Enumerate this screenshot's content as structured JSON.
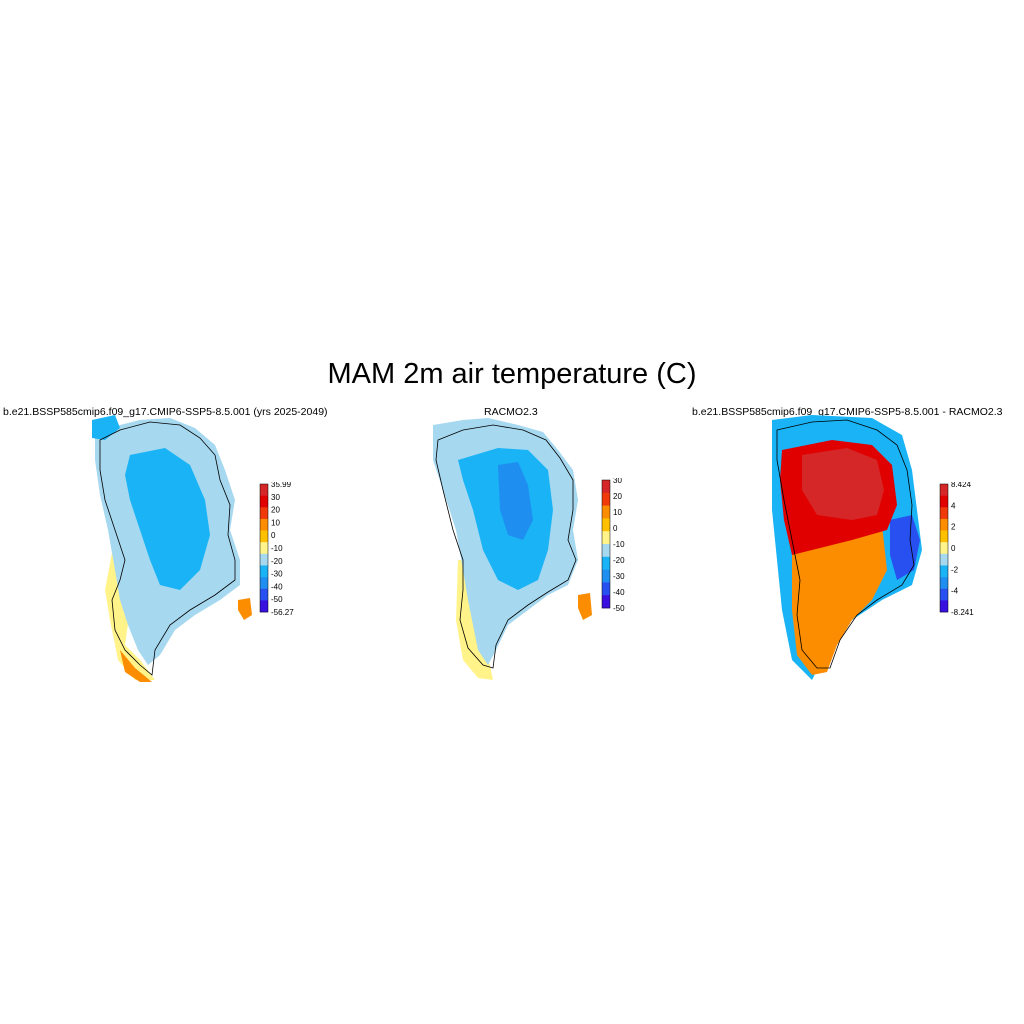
{
  "title": "MAM 2m air temperature (C)",
  "panels": [
    {
      "id": "model",
      "title": "b.e21.BSSP585cmip6.f09_g17.CMIP6-SSP5-8.5.001 (yrs 2025-2049)",
      "colorbar": {
        "labels": [
          "35.99",
          "30",
          "20",
          "10",
          "0",
          "-10",
          "-20",
          "-30",
          "-40",
          "-50",
          "-56.27"
        ],
        "colors": [
          "#d62728",
          "#e00000",
          "#f03a0a",
          "#fd8d00",
          "#ffc000",
          "#fff38a",
          "#a6d8f0",
          "#1ab3f5",
          "#1e8ff0",
          "#2850f0",
          "#3a10e0"
        ]
      }
    },
    {
      "id": "racmo",
      "title": "RACMO2.3",
      "colorbar": {
        "labels": [
          "30",
          "20",
          "10",
          "0",
          "-10",
          "-20",
          "-30",
          "-40",
          "-50"
        ],
        "colors": [
          "#d62728",
          "#f03a0a",
          "#fd8d00",
          "#ffc000",
          "#fff38a",
          "#a6d8f0",
          "#1ab3f5",
          "#1e8ff0",
          "#2850f0",
          "#3a10e0"
        ]
      }
    },
    {
      "id": "diff",
      "title": "b.e21.BSSP585cmip6.f09_g17.CMIP6-SSP5-8.5.001 - RACMO2.3",
      "colorbar": {
        "labels": [
          "8.424",
          "4",
          "2",
          "0",
          "-2",
          "-4",
          "-8.241"
        ],
        "colors": [
          "#d62728",
          "#e00000",
          "#f03a0a",
          "#fd8d00",
          "#ffc000",
          "#fff38a",
          "#a6d8f0",
          "#1ab3f5",
          "#1e8ff0",
          "#2850f0",
          "#3a10e0"
        ]
      }
    }
  ]
}
